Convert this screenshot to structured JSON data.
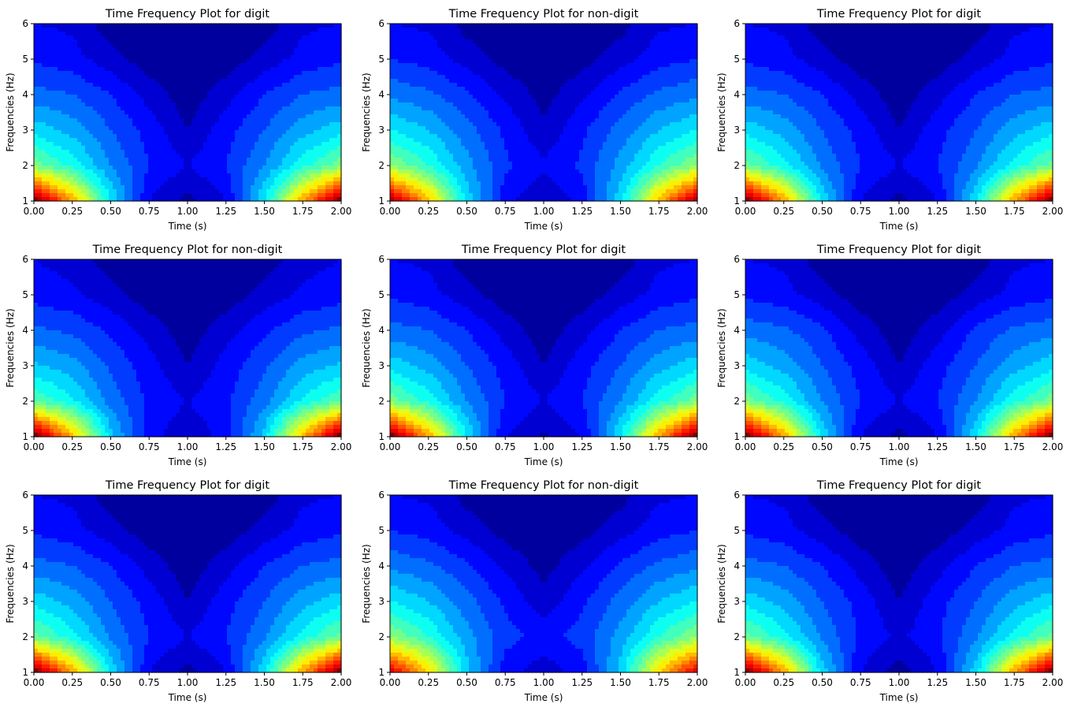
{
  "chart_data": [
    {
      "type": "heatmap",
      "title": "Time Frequency Plot for digit",
      "xlabel": "Time (s)",
      "ylabel": "Frequencies (Hz)",
      "xlim": [
        0,
        2
      ],
      "ylim": [
        1,
        6
      ],
      "xticks": [
        "0.00",
        "0.25",
        "0.50",
        "0.75",
        "1.00",
        "1.25",
        "1.50",
        "1.75",
        "2.00"
      ],
      "yticks": [
        "1",
        "2",
        "3",
        "4",
        "5",
        "6"
      ],
      "colormap": "jet",
      "x": [
        0,
        0.25,
        0.5,
        0.75,
        1,
        1.25,
        1.5,
        1.75,
        2
      ],
      "y": [
        1,
        2,
        3,
        4,
        5,
        6
      ],
      "z": [
        [
          1.0,
          0.7,
          0.35,
          0.1,
          0.03,
          0.1,
          0.35,
          0.7,
          1.0
        ],
        [
          0.48,
          0.38,
          0.25,
          0.15,
          0.1,
          0.15,
          0.25,
          0.38,
          0.48
        ],
        [
          0.33,
          0.28,
          0.2,
          0.13,
          0.05,
          0.13,
          0.2,
          0.28,
          0.33
        ],
        [
          0.22,
          0.2,
          0.15,
          0.08,
          0.02,
          0.08,
          0.15,
          0.2,
          0.22
        ],
        [
          0.14,
          0.12,
          0.07,
          0.02,
          0.0,
          0.02,
          0.07,
          0.12,
          0.14
        ],
        [
          0.1,
          0.09,
          0.02,
          0.0,
          0.0,
          0.0,
          0.02,
          0.09,
          0.1
        ]
      ]
    },
    {
      "type": "heatmap",
      "title": "Time Frequency Plot for non-digit",
      "xlabel": "Time (s)",
      "ylabel": "Frequencies (Hz)",
      "xlim": [
        0,
        2
      ],
      "ylim": [
        1,
        6
      ],
      "xticks": [
        "0.00",
        "0.25",
        "0.50",
        "0.75",
        "1.00",
        "1.25",
        "1.50",
        "1.75",
        "2.00"
      ],
      "yticks": [
        "1",
        "2",
        "3",
        "4",
        "5",
        "6"
      ],
      "colormap": "jet",
      "x": [
        0,
        0.25,
        0.5,
        0.75,
        1,
        1.25,
        1.5,
        1.75,
        2
      ],
      "y": [
        1,
        2,
        3,
        4,
        5,
        6
      ],
      "z": [
        [
          0.95,
          0.68,
          0.33,
          0.12,
          0.05,
          0.12,
          0.33,
          0.68,
          0.95
        ],
        [
          0.5,
          0.4,
          0.27,
          0.16,
          0.11,
          0.16,
          0.27,
          0.4,
          0.5
        ],
        [
          0.35,
          0.3,
          0.22,
          0.14,
          0.06,
          0.14,
          0.22,
          0.3,
          0.35
        ],
        [
          0.24,
          0.21,
          0.16,
          0.09,
          0.03,
          0.09,
          0.16,
          0.21,
          0.24
        ],
        [
          0.15,
          0.13,
          0.08,
          0.03,
          0.0,
          0.03,
          0.08,
          0.13,
          0.15
        ],
        [
          0.1,
          0.09,
          0.03,
          0.0,
          0.0,
          0.0,
          0.03,
          0.09,
          0.1
        ]
      ]
    },
    {
      "type": "heatmap",
      "title": "Time Frequency Plot for digit",
      "xlabel": "Time (s)",
      "ylabel": "Frequencies (Hz)",
      "xlim": [
        0,
        2
      ],
      "ylim": [
        1,
        6
      ],
      "xticks": [
        "0.00",
        "0.25",
        "0.50",
        "0.75",
        "1.00",
        "1.25",
        "1.50",
        "1.75",
        "2.00"
      ],
      "yticks": [
        "1",
        "2",
        "3",
        "4",
        "5",
        "6"
      ],
      "colormap": "jet",
      "x": [
        0,
        0.25,
        0.5,
        0.75,
        1,
        1.25,
        1.5,
        1.75,
        2
      ],
      "y": [
        1,
        2,
        3,
        4,
        5,
        6
      ],
      "z": [
        [
          1.0,
          0.7,
          0.34,
          0.1,
          0.03,
          0.1,
          0.34,
          0.7,
          1.0
        ],
        [
          0.47,
          0.37,
          0.24,
          0.15,
          0.1,
          0.15,
          0.24,
          0.37,
          0.47
        ],
        [
          0.33,
          0.28,
          0.2,
          0.13,
          0.05,
          0.13,
          0.2,
          0.28,
          0.33
        ],
        [
          0.22,
          0.2,
          0.15,
          0.08,
          0.02,
          0.08,
          0.15,
          0.2,
          0.22
        ],
        [
          0.14,
          0.12,
          0.07,
          0.02,
          0.0,
          0.02,
          0.07,
          0.12,
          0.14
        ],
        [
          0.1,
          0.09,
          0.02,
          0.0,
          0.0,
          0.0,
          0.02,
          0.09,
          0.1
        ]
      ]
    },
    {
      "type": "heatmap",
      "title": "Time Frequency Plot for non-digit",
      "xlabel": "Time (s)",
      "ylabel": "Frequencies (Hz)",
      "xlim": [
        0,
        2
      ],
      "ylim": [
        1,
        6
      ],
      "xticks": [
        "0.00",
        "0.25",
        "0.50",
        "0.75",
        "1.00",
        "1.25",
        "1.50",
        "1.75",
        "2.00"
      ],
      "yticks": [
        "1",
        "2",
        "3",
        "4",
        "5",
        "6"
      ],
      "colormap": "jet",
      "x": [
        0,
        0.25,
        0.5,
        0.75,
        1,
        1.25,
        1.5,
        1.75,
        2
      ],
      "y": [
        1,
        2,
        3,
        4,
        5,
        6
      ],
      "z": [
        [
          1.0,
          0.68,
          0.32,
          0.12,
          0.06,
          0.12,
          0.32,
          0.68,
          1.0
        ],
        [
          0.45,
          0.36,
          0.23,
          0.14,
          0.1,
          0.14,
          0.23,
          0.36,
          0.45
        ],
        [
          0.31,
          0.27,
          0.19,
          0.12,
          0.05,
          0.12,
          0.19,
          0.27,
          0.31
        ],
        [
          0.21,
          0.19,
          0.14,
          0.08,
          0.02,
          0.08,
          0.14,
          0.19,
          0.21
        ],
        [
          0.13,
          0.11,
          0.07,
          0.02,
          0.0,
          0.02,
          0.07,
          0.11,
          0.13
        ],
        [
          0.1,
          0.08,
          0.02,
          0.0,
          0.0,
          0.0,
          0.02,
          0.08,
          0.1
        ]
      ]
    },
    {
      "type": "heatmap",
      "title": "Time Frequency Plot for digit",
      "xlabel": "Time (s)",
      "ylabel": "Frequencies (Hz)",
      "xlim": [
        0,
        2
      ],
      "ylim": [
        1,
        6
      ],
      "xticks": [
        "0.00",
        "0.25",
        "0.50",
        "0.75",
        "1.00",
        "1.25",
        "1.50",
        "1.75",
        "2.00"
      ],
      "yticks": [
        "1",
        "2",
        "3",
        "4",
        "5",
        "6"
      ],
      "colormap": "jet",
      "x": [
        0,
        0.25,
        0.5,
        0.75,
        1,
        1.25,
        1.5,
        1.75,
        2
      ],
      "y": [
        1,
        2,
        3,
        4,
        5,
        6
      ],
      "z": [
        [
          1.0,
          0.7,
          0.35,
          0.1,
          0.04,
          0.1,
          0.35,
          0.7,
          1.0
        ],
        [
          0.48,
          0.38,
          0.25,
          0.15,
          0.1,
          0.15,
          0.25,
          0.38,
          0.48
        ],
        [
          0.33,
          0.28,
          0.2,
          0.13,
          0.05,
          0.13,
          0.2,
          0.28,
          0.33
        ],
        [
          0.22,
          0.2,
          0.15,
          0.08,
          0.02,
          0.08,
          0.15,
          0.2,
          0.22
        ],
        [
          0.14,
          0.12,
          0.07,
          0.02,
          0.0,
          0.02,
          0.07,
          0.12,
          0.14
        ],
        [
          0.1,
          0.09,
          0.02,
          0.0,
          0.0,
          0.0,
          0.02,
          0.09,
          0.1
        ]
      ]
    },
    {
      "type": "heatmap",
      "title": "Time Frequency Plot for digit",
      "xlabel": "Time (s)",
      "ylabel": "Frequencies (Hz)",
      "xlim": [
        0,
        2
      ],
      "ylim": [
        1,
        6
      ],
      "xticks": [
        "0.00",
        "0.25",
        "0.50",
        "0.75",
        "1.00",
        "1.25",
        "1.50",
        "1.75",
        "2.00"
      ],
      "yticks": [
        "1",
        "2",
        "3",
        "4",
        "5",
        "6"
      ],
      "colormap": "jet",
      "x": [
        0,
        0.25,
        0.5,
        0.75,
        1,
        1.25,
        1.5,
        1.75,
        2
      ],
      "y": [
        1,
        2,
        3,
        4,
        5,
        6
      ],
      "z": [
        [
          1.0,
          0.7,
          0.34,
          0.1,
          0.03,
          0.1,
          0.34,
          0.7,
          1.0
        ],
        [
          0.48,
          0.38,
          0.25,
          0.15,
          0.1,
          0.15,
          0.25,
          0.38,
          0.48
        ],
        [
          0.33,
          0.28,
          0.2,
          0.13,
          0.05,
          0.13,
          0.2,
          0.28,
          0.33
        ],
        [
          0.23,
          0.21,
          0.16,
          0.08,
          0.02,
          0.08,
          0.16,
          0.21,
          0.23
        ],
        [
          0.14,
          0.12,
          0.07,
          0.02,
          0.0,
          0.02,
          0.07,
          0.12,
          0.14
        ],
        [
          0.1,
          0.09,
          0.02,
          0.0,
          0.0,
          0.0,
          0.02,
          0.09,
          0.1
        ]
      ]
    },
    {
      "type": "heatmap",
      "title": "Time Frequency Plot for digit",
      "xlabel": "Time (s)",
      "ylabel": "Frequencies (Hz)",
      "xlim": [
        0,
        2
      ],
      "ylim": [
        1,
        6
      ],
      "xticks": [
        "0.00",
        "0.25",
        "0.50",
        "0.75",
        "1.00",
        "1.25",
        "1.50",
        "1.75",
        "2.00"
      ],
      "yticks": [
        "1",
        "2",
        "3",
        "4",
        "5",
        "6"
      ],
      "colormap": "jet",
      "x": [
        0,
        0.25,
        0.5,
        0.75,
        1,
        1.25,
        1.5,
        1.75,
        2
      ],
      "y": [
        1,
        2,
        3,
        4,
        5,
        6
      ],
      "z": [
        [
          1.0,
          0.7,
          0.35,
          0.1,
          0.03,
          0.1,
          0.35,
          0.7,
          1.0
        ],
        [
          0.47,
          0.37,
          0.24,
          0.15,
          0.1,
          0.15,
          0.24,
          0.37,
          0.47
        ],
        [
          0.33,
          0.28,
          0.2,
          0.13,
          0.05,
          0.13,
          0.2,
          0.28,
          0.33
        ],
        [
          0.22,
          0.2,
          0.15,
          0.08,
          0.02,
          0.08,
          0.15,
          0.2,
          0.22
        ],
        [
          0.14,
          0.12,
          0.07,
          0.02,
          0.0,
          0.02,
          0.07,
          0.12,
          0.14
        ],
        [
          0.1,
          0.09,
          0.02,
          0.0,
          0.0,
          0.0,
          0.02,
          0.09,
          0.1
        ]
      ]
    },
    {
      "type": "heatmap",
      "title": "Time Frequency Plot for non-digit",
      "xlabel": "Time (s)",
      "ylabel": "Frequencies (Hz)",
      "xlim": [
        0,
        2
      ],
      "ylim": [
        1,
        6
      ],
      "xticks": [
        "0.00",
        "0.25",
        "0.50",
        "0.75",
        "1.00",
        "1.25",
        "1.50",
        "1.75",
        "2.00"
      ],
      "yticks": [
        "1",
        "2",
        "3",
        "4",
        "5",
        "6"
      ],
      "colormap": "jet",
      "x": [
        0,
        0.25,
        0.5,
        0.75,
        1,
        1.25,
        1.5,
        1.75,
        2
      ],
      "y": [
        1,
        2,
        3,
        4,
        5,
        6
      ],
      "z": [
        [
          0.9,
          0.65,
          0.32,
          0.12,
          0.07,
          0.12,
          0.32,
          0.65,
          0.9
        ],
        [
          0.5,
          0.4,
          0.27,
          0.17,
          0.13,
          0.17,
          0.27,
          0.4,
          0.5
        ],
        [
          0.35,
          0.3,
          0.22,
          0.14,
          0.07,
          0.14,
          0.22,
          0.3,
          0.35
        ],
        [
          0.24,
          0.21,
          0.16,
          0.09,
          0.03,
          0.09,
          0.16,
          0.21,
          0.24
        ],
        [
          0.15,
          0.13,
          0.08,
          0.03,
          0.0,
          0.03,
          0.08,
          0.13,
          0.15
        ],
        [
          0.1,
          0.09,
          0.03,
          0.0,
          0.0,
          0.0,
          0.03,
          0.09,
          0.1
        ]
      ]
    },
    {
      "type": "heatmap",
      "title": "Time Frequency Plot for digit",
      "xlabel": "Time (s)",
      "ylabel": "Frequencies (Hz)",
      "xlim": [
        0,
        2
      ],
      "ylim": [
        1,
        6
      ],
      "xticks": [
        "0.00",
        "0.25",
        "0.50",
        "0.75",
        "1.00",
        "1.25",
        "1.50",
        "1.75",
        "2.00"
      ],
      "yticks": [
        "1",
        "2",
        "3",
        "4",
        "5",
        "6"
      ],
      "colormap": "jet",
      "x": [
        0,
        0.25,
        0.5,
        0.75,
        1,
        1.25,
        1.5,
        1.75,
        2
      ],
      "y": [
        1,
        2,
        3,
        4,
        5,
        6
      ],
      "z": [
        [
          1.0,
          0.7,
          0.33,
          0.1,
          0.02,
          0.1,
          0.33,
          0.7,
          1.0
        ],
        [
          0.47,
          0.37,
          0.24,
          0.14,
          0.09,
          0.14,
          0.24,
          0.37,
          0.47
        ],
        [
          0.33,
          0.28,
          0.2,
          0.13,
          0.05,
          0.13,
          0.2,
          0.28,
          0.33
        ],
        [
          0.22,
          0.2,
          0.15,
          0.08,
          0.02,
          0.08,
          0.15,
          0.2,
          0.22
        ],
        [
          0.14,
          0.12,
          0.07,
          0.02,
          0.0,
          0.02,
          0.07,
          0.12,
          0.14
        ],
        [
          0.1,
          0.09,
          0.02,
          0.0,
          0.0,
          0.0,
          0.02,
          0.09,
          0.1
        ]
      ]
    }
  ]
}
